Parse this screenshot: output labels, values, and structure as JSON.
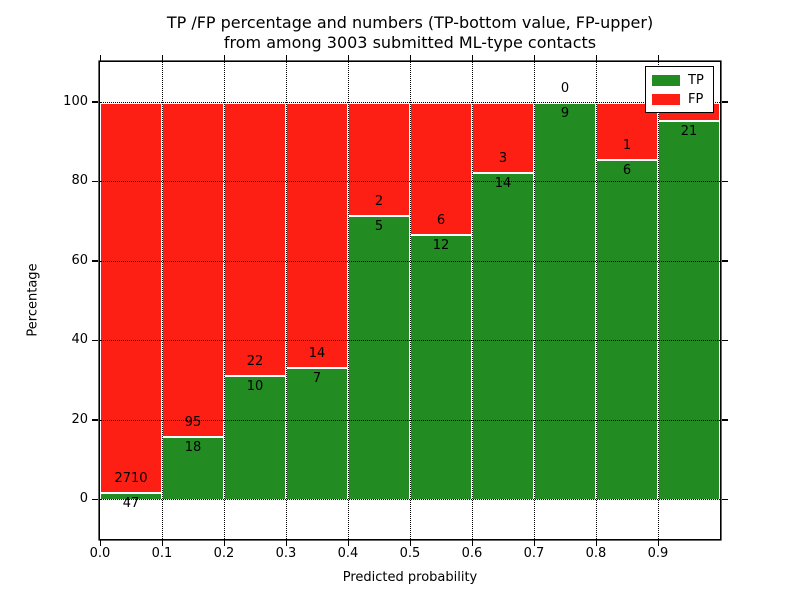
{
  "figure": {
    "title_line1": "TP /FP percentage and numbers (TP-bottom value, FP-upper)",
    "title_line2": "from among 3003 submitted ML-type contacts"
  },
  "axes": {
    "xlabel": "Predicted probability",
    "ylabel": "Percentage",
    "x_tick_labels": [
      "0.0",
      "0.1",
      "0.2",
      "0.3",
      "0.4",
      "0.5",
      "0.6",
      "0.7",
      "0.8",
      "0.9"
    ],
    "y_tick_labels": [
      "0",
      "20",
      "40",
      "60",
      "80",
      "100"
    ],
    "y_tick_values": [
      0,
      20,
      40,
      60,
      80,
      100
    ]
  },
  "legend": {
    "items": [
      {
        "label": "TP",
        "color": "#228b22"
      },
      {
        "label": "FP",
        "color": "#fd1e14"
      }
    ]
  },
  "chart_data": {
    "type": "bar",
    "stacked": true,
    "normalized_to_100_percent": true,
    "title": "TP /FP percentage and numbers (TP-bottom value, FP-upper) from among 3003 submitted ML-type contacts",
    "xlabel": "Predicted probability",
    "ylabel": "Percentage",
    "xlim": [
      0.0,
      1.0
    ],
    "ylim": [
      -10,
      110
    ],
    "grid": true,
    "legend_position": "upper right",
    "total_contacts": 3003,
    "bin_edges": [
      0.0,
      0.1,
      0.2,
      0.3,
      0.4,
      0.5,
      0.6,
      0.7,
      0.8,
      0.9,
      1.0
    ],
    "categories": [
      "0.0-0.1",
      "0.1-0.2",
      "0.2-0.3",
      "0.3-0.4",
      "0.4-0.5",
      "0.5-0.6",
      "0.6-0.7",
      "0.7-0.8",
      "0.8-0.9",
      "0.9-1.0"
    ],
    "series": [
      {
        "name": "TP",
        "color": "#228b22",
        "counts": [
          47,
          18,
          10,
          7,
          5,
          12,
          14,
          9,
          6,
          21
        ],
        "pct": [
          1.7,
          15.93,
          31.25,
          33.33,
          71.43,
          66.67,
          82.35,
          100.0,
          85.71,
          95.45
        ]
      },
      {
        "name": "FP",
        "color": "#fd1e14",
        "counts": [
          2710,
          95,
          22,
          14,
          2,
          6,
          3,
          0,
          1,
          null
        ],
        "pct": [
          98.3,
          84.07,
          68.75,
          66.67,
          28.57,
          33.33,
          17.65,
          0.0,
          14.29,
          4.55
        ]
      }
    ],
    "bar_labels": {
      "tp": [
        "47",
        "18",
        "10",
        "7",
        "5",
        "12",
        "14",
        "9",
        "6",
        "21"
      ],
      "fp": [
        "2710",
        "95",
        "22",
        "14",
        "2",
        "6",
        "3",
        "0",
        "1",
        ""
      ]
    }
  }
}
